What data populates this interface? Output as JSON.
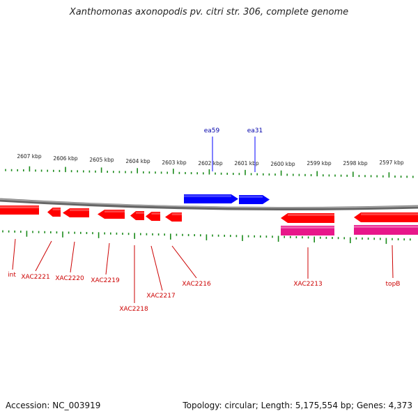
{
  "title": "Xanthomonas axonopodis pv. citri str. 306, complete genome",
  "footer": {
    "accession": "Accession: NC_003919",
    "summary": "Topology: circular; Length: 5,175,554 bp; Genes: 4,373"
  },
  "colors": {
    "forward_gene": "#0000ff",
    "reverse_gene": "#ff0000",
    "cds": "#e8178a",
    "backbone": "#888888",
    "ticks": "#1a8a1a",
    "gene_label": "#cc0000",
    "forward_label": "#0000aa"
  },
  "scale_labels": [
    {
      "text": "2607 kbp"
    },
    {
      "text": "2606 kbp"
    },
    {
      "text": "2605 kbp"
    },
    {
      "text": "2604 kbp"
    },
    {
      "text": "2603 kbp"
    },
    {
      "text": "2602 kbp"
    },
    {
      "text": "2601 kbp"
    },
    {
      "text": "2600 kbp"
    },
    {
      "text": "2599 kbp"
    },
    {
      "text": "2598 kbp"
    },
    {
      "text": "2597 kbp"
    }
  ],
  "forward_genes": [
    {
      "label": "ea59"
    },
    {
      "label": "ea31"
    }
  ],
  "reverse_genes": [
    {
      "label": "int"
    },
    {
      "label": "XAC2221"
    },
    {
      "label": "XAC2220"
    },
    {
      "label": "XAC2219"
    },
    {
      "label": "XAC2218"
    },
    {
      "label": "XAC2217"
    },
    {
      "label": "XAC2216"
    },
    {
      "label": "XAC2213"
    },
    {
      "label": "topB"
    }
  ]
}
